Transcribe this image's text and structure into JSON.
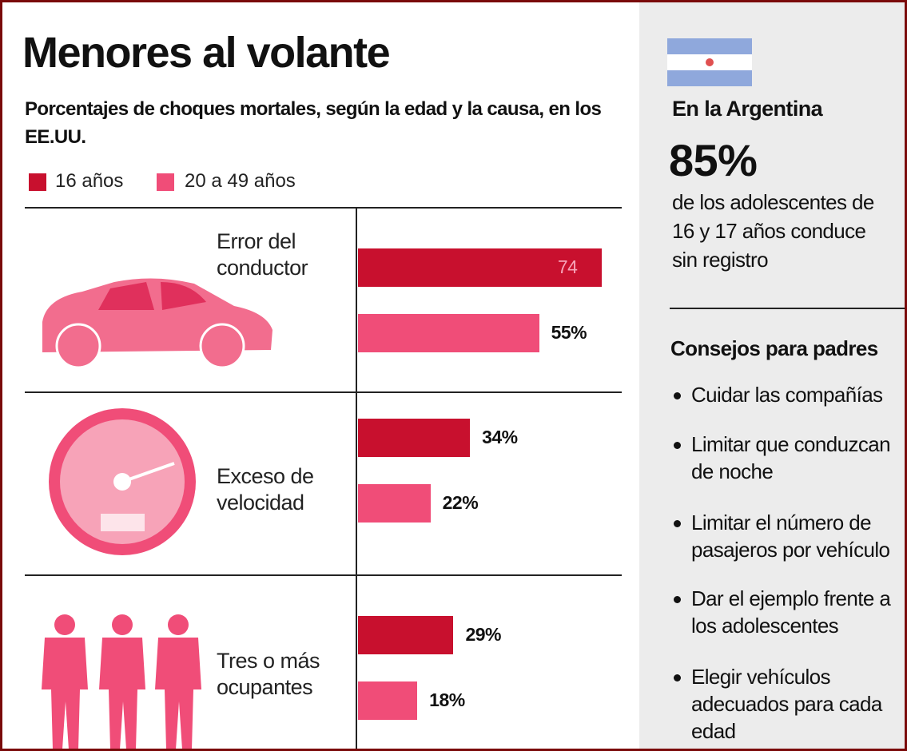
{
  "chart_data": {
    "type": "bar",
    "orientation": "horizontal",
    "title": "Menores al volante",
    "subtitle": "Porcentajes de choques mortales, según la edad y la causa, en los EE.UU.",
    "categories": [
      "Error del conductor",
      "Exceso de velocidad",
      "Tres o más ocupantes"
    ],
    "series": [
      {
        "name": "16 años",
        "color": "#c8102e",
        "values": [
          74,
          34,
          29
        ],
        "value_labels": [
          "74",
          "34%",
          "29%"
        ]
      },
      {
        "name": "20 a 49 años",
        "color": "#f04d78",
        "values": [
          55,
          22,
          18
        ],
        "value_labels": [
          "55%",
          "22%",
          "18%"
        ]
      }
    ]
  },
  "sidebar": {
    "heading": "En la Argentina",
    "stat": "85%",
    "stat_text": "de los adolescentes de 16 y 17 años conduce sin registro",
    "tips_title": "Consejos para padres",
    "tips": [
      "Cuidar las compañías",
      "Limitar que conduzcan de noche",
      "Limitar el número de pasajeros por vehículo",
      "Dar el ejemplo frente a los adolescentes",
      "Elegir vehículos adecuados para cada edad"
    ]
  }
}
